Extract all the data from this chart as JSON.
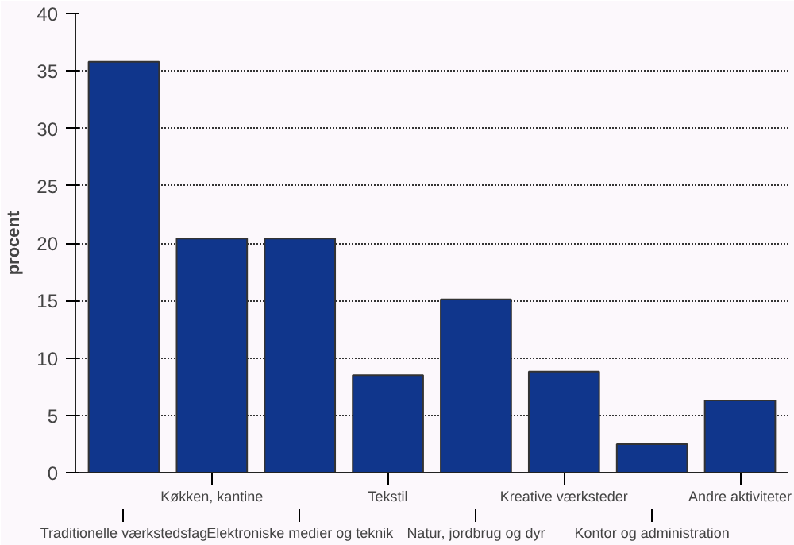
{
  "chart_data": {
    "type": "bar",
    "ylabel": "procent",
    "categories": [
      "Traditionelle værkstedsfag",
      "Køkken, kantine",
      "Elektroniske medier og teknik",
      "Tekstil",
      "Natur, jordbrug og dyr",
      "Kreative værksteder",
      "Kontor og administration",
      "Andre aktiviteter"
    ],
    "values": [
      35.8,
      20.4,
      20.4,
      8.5,
      15.1,
      8.8,
      2.5,
      6.3
    ],
    "color": "#10368c",
    "ylim": [
      0,
      40
    ],
    "yticks": [
      0,
      5,
      10,
      15,
      20,
      25,
      30,
      35,
      40
    ],
    "grid": "y"
  }
}
